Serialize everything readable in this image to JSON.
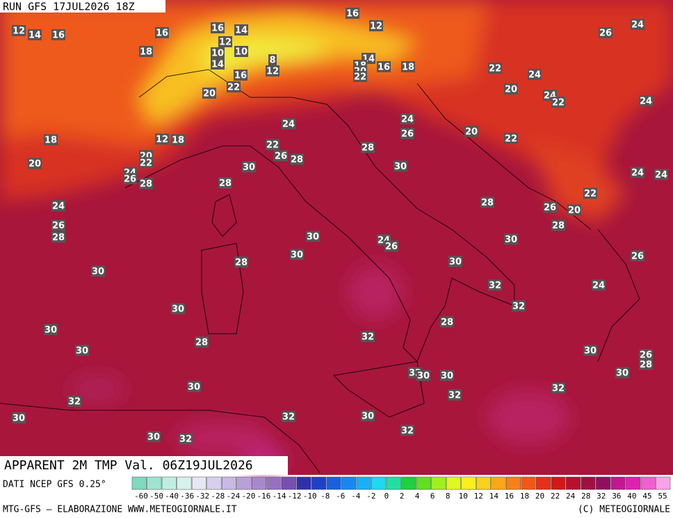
{
  "header": {
    "run": "RUN GFS 17JUL2026 18Z",
    "field": "APPARENT 2M TMP Val. 06Z19JUL2026",
    "source": "DATI NCEP GFS 0.25°",
    "credit": "MTG-GFS — ELABORAZIONE WWW.METEOGIORNALE.IT",
    "copyright": "(C) METEOGIORNALE"
  },
  "map": {
    "labels": [
      12,
      14,
      16,
      16,
      12,
      16,
      16,
      14,
      12,
      10,
      10,
      8,
      14,
      12,
      16,
      18,
      26,
      24,
      14,
      18,
      20,
      22,
      16,
      18,
      22,
      24,
      20,
      20,
      22,
      24,
      22,
      24,
      24,
      24,
      26,
      20,
      22,
      18,
      12,
      18,
      22,
      26,
      28,
      28,
      20,
      22,
      20,
      30,
      30,
      24,
      26,
      28,
      28,
      24,
      24,
      22,
      24,
      28,
      26,
      20,
      26,
      28,
      28,
      30,
      24,
      26,
      30,
      30,
      26,
      28,
      30,
      30,
      32,
      24,
      32,
      30,
      28,
      30,
      32,
      28,
      30,
      30,
      26,
      28,
      32,
      30,
      30,
      30,
      30,
      32,
      32,
      32,
      30,
      32,
      30,
      32,
      30,
      32
    ]
  },
  "legend": {
    "ticks": [
      -60,
      -50,
      -40,
      -36,
      -32,
      -28,
      -24,
      -20,
      -16,
      -14,
      -12,
      -10,
      -8,
      -6,
      -4,
      -2,
      0,
      2,
      4,
      6,
      8,
      10,
      12,
      14,
      16,
      18,
      20,
      22,
      24,
      28,
      32,
      36,
      40,
      45,
      55
    ],
    "colors": [
      "#7fd8c0",
      "#9fe4d0",
      "#bfeee0",
      "#d8f0ec",
      "#e6e6f4",
      "#d6d0ee",
      "#c8b8e4",
      "#b8a0d8",
      "#a888cc",
      "#9870c0",
      "#7850b0",
      "#3030a8",
      "#2040c8",
      "#1860e0",
      "#1888f0",
      "#18b0f8",
      "#20d8f0",
      "#20e0a0",
      "#20d040",
      "#60e020",
      "#a0f020",
      "#e0f820",
      "#f8f020",
      "#f8d020",
      "#f8a818",
      "#f88018",
      "#f05818",
      "#e83018",
      "#d01818",
      "#b81030",
      "#a01040",
      "#901060",
      "#c01890",
      "#e020b0",
      "#f060d0",
      "#f8a0e8"
    ]
  }
}
